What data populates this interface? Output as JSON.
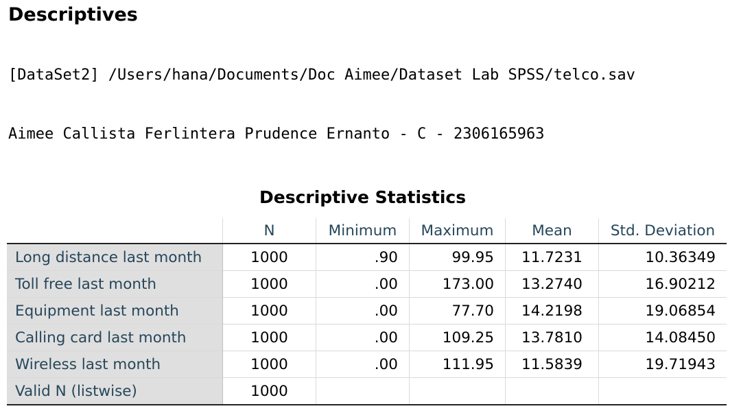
{
  "heading": "Descriptives",
  "dataset_path": "[DataSet2] /Users/hana/Documents/Doc Aimee/Dataset Lab SPSS/telco.sav",
  "author_line": "Aimee Callista Ferlintera Prudence Ernanto - C - 2306165963",
  "table": {
    "title": "Descriptive Statistics",
    "columns": [
      "N",
      "Minimum",
      "Maximum",
      "Mean",
      "Std. Deviation"
    ],
    "rows": [
      {
        "label": "Long distance last month",
        "n": "1000",
        "min": ".90",
        "max": "99.95",
        "mean": "11.7231",
        "sd": "10.36349"
      },
      {
        "label": "Toll free last month",
        "n": "1000",
        "min": ".00",
        "max": "173.00",
        "mean": "13.2740",
        "sd": "16.90212"
      },
      {
        "label": "Equipment last month",
        "n": "1000",
        "min": ".00",
        "max": "77.70",
        "mean": "14.2198",
        "sd": "19.06854"
      },
      {
        "label": "Calling card last month",
        "n": "1000",
        "min": ".00",
        "max": "109.25",
        "mean": "13.7810",
        "sd": "14.08450"
      },
      {
        "label": "Wireless last month",
        "n": "1000",
        "min": ".00",
        "max": "111.95",
        "mean": "11.5839",
        "sd": "19.71943"
      },
      {
        "label": "Valid N (listwise)",
        "n": "1000",
        "min": "",
        "max": "",
        "mean": "",
        "sd": ""
      }
    ]
  }
}
